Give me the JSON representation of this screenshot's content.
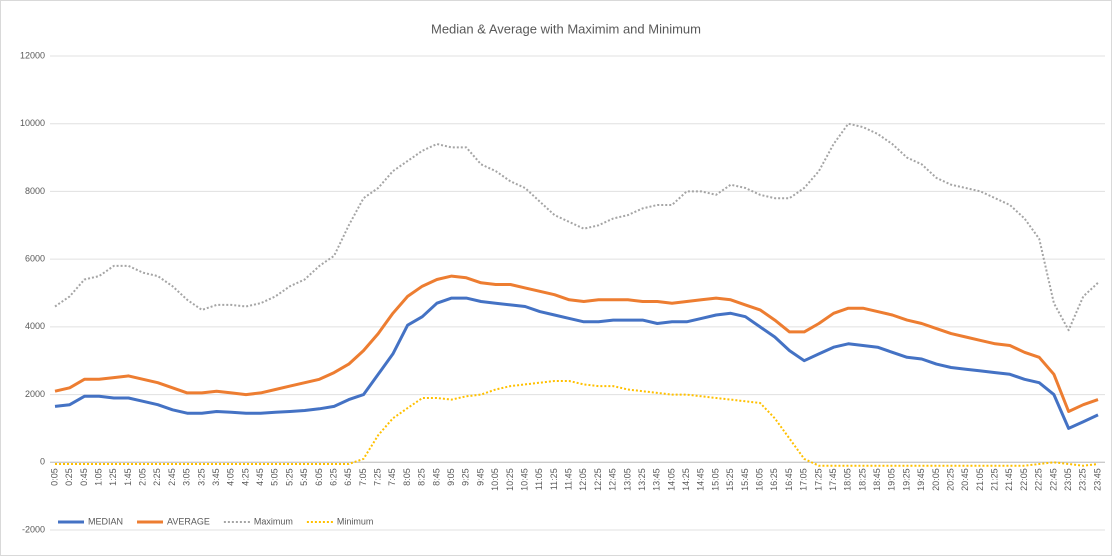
{
  "chart_data": {
    "type": "line",
    "title": "Median & Average with Maximim and Minimum",
    "categories": [
      "0:05",
      "0:25",
      "0:45",
      "1:05",
      "1:25",
      "1:45",
      "2:05",
      "2:25",
      "2:45",
      "3:05",
      "3:25",
      "3:45",
      "4:05",
      "4:25",
      "4:45",
      "5:05",
      "5:25",
      "5:45",
      "6:05",
      "6:25",
      "6:45",
      "7:05",
      "7:25",
      "7:45",
      "8:05",
      "8:25",
      "8:45",
      "9:05",
      "9:25",
      "9:45",
      "10:05",
      "10:25",
      "10:45",
      "11:05",
      "11:25",
      "11:45",
      "12:05",
      "12:25",
      "12:45",
      "13:05",
      "13:25",
      "13:45",
      "14:05",
      "14:25",
      "14:45",
      "15:05",
      "15:25",
      "15:45",
      "16:05",
      "16:25",
      "16:45",
      "17:05",
      "17:25",
      "17:45",
      "18:05",
      "18:25",
      "18:45",
      "19:05",
      "19:25",
      "19:45",
      "20:05",
      "20:25",
      "20:45",
      "21:05",
      "21:25",
      "21:45",
      "22:05",
      "22:25",
      "22:45",
      "23:05",
      "23:25",
      "23:45"
    ],
    "series": [
      {
        "name": "MEDIAN",
        "color": "#4472c4",
        "dash": false,
        "values": [
          1650,
          1700,
          1950,
          1950,
          1900,
          1900,
          1800,
          1700,
          1550,
          1450,
          1450,
          1500,
          1480,
          1450,
          1450,
          1480,
          1500,
          1530,
          1580,
          1650,
          1850,
          2000,
          2600,
          3200,
          4050,
          4300,
          4700,
          4850,
          4850,
          4750,
          4700,
          4650,
          4600,
          4450,
          4350,
          4250,
          4150,
          4150,
          4200,
          4200,
          4200,
          4100,
          4150,
          4150,
          4250,
          4350,
          4400,
          4300,
          4000,
          3700,
          3300,
          3000,
          3200,
          3400,
          3500,
          3450,
          3400,
          3250,
          3100,
          3050,
          2900,
          2800,
          2750,
          2700,
          2650,
          2600,
          2450,
          2350,
          2000,
          1000,
          1200,
          1400
        ]
      },
      {
        "name": "AVERAGE",
        "color": "#ed7d31",
        "dash": false,
        "values": [
          2100,
          2200,
          2450,
          2450,
          2500,
          2550,
          2450,
          2350,
          2200,
          2050,
          2050,
          2100,
          2050,
          2000,
          2050,
          2150,
          2250,
          2350,
          2450,
          2650,
          2900,
          3300,
          3800,
          4400,
          4900,
          5200,
          5400,
          5500,
          5450,
          5300,
          5250,
          5250,
          5150,
          5050,
          4950,
          4800,
          4750,
          4800,
          4800,
          4800,
          4750,
          4750,
          4700,
          4750,
          4800,
          4850,
          4800,
          4650,
          4500,
          4200,
          3850,
          3850,
          4100,
          4400,
          4550,
          4550,
          4450,
          4350,
          4200,
          4100,
          3950,
          3800,
          3700,
          3600,
          3500,
          3450,
          3250,
          3100,
          2600,
          1500,
          1700,
          1850
        ]
      },
      {
        "name": "Maximum",
        "color": "#a5a5a5",
        "dash": true,
        "values": [
          4600,
          4900,
          5400,
          5500,
          5800,
          5800,
          5600,
          5500,
          5200,
          4800,
          4500,
          4650,
          4650,
          4600,
          4700,
          4900,
          5200,
          5400,
          5800,
          6100,
          7000,
          7800,
          8100,
          8600,
          8900,
          9200,
          9400,
          9300,
          9300,
          8800,
          8600,
          8300,
          8100,
          7700,
          7300,
          7100,
          6900,
          7000,
          7200,
          7300,
          7500,
          7600,
          7600,
          8000,
          8000,
          7900,
          8200,
          8100,
          7900,
          7800,
          7800,
          8100,
          8600,
          9400,
          10000,
          9900,
          9700,
          9400,
          9000,
          8800,
          8400,
          8200,
          8100,
          8000,
          7800,
          7600,
          7200,
          6600,
          4700,
          3900,
          4900,
          5300
        ]
      },
      {
        "name": "Minimum",
        "color": "#ffc000",
        "dash": true,
        "values": [
          -50,
          -50,
          -50,
          -50,
          -50,
          -50,
          -50,
          -50,
          -50,
          -50,
          -50,
          -50,
          -50,
          -50,
          -50,
          -50,
          -50,
          -50,
          -50,
          -50,
          -50,
          100,
          800,
          1300,
          1600,
          1900,
          1900,
          1850,
          1950,
          2000,
          2150,
          2250,
          2300,
          2350,
          2400,
          2400,
          2300,
          2250,
          2250,
          2150,
          2100,
          2050,
          2000,
          2000,
          1950,
          1900,
          1850,
          1800,
          1750,
          1300,
          700,
          100,
          -100,
          -100,
          -100,
          -100,
          -100,
          -100,
          -100,
          -100,
          -100,
          -100,
          -100,
          -100,
          -100,
          -100,
          -100,
          -50,
          0,
          -50,
          -100,
          -50
        ]
      }
    ],
    "ylim": [
      -2000,
      12000
    ],
    "yticks": [
      -2000,
      0,
      2000,
      4000,
      6000,
      8000,
      10000,
      12000
    ],
    "grid": true,
    "legend": "bottom-left"
  }
}
